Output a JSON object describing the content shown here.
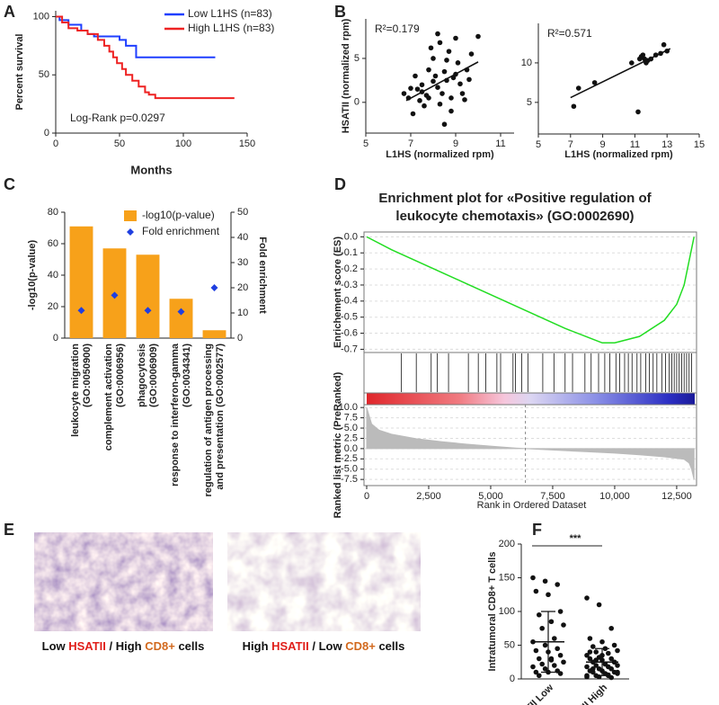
{
  "chart_data": [
    {
      "type": "step",
      "panel": "A",
      "xlabel": "Months",
      "ylabel": "Percent survival",
      "xlim": [
        0,
        150
      ],
      "xticks": [
        0,
        50,
        100,
        150
      ],
      "ylim": [
        0,
        105
      ],
      "yticks": [
        0,
        50,
        100
      ],
      "annotation": "Log-Rank p=0.0297",
      "legend": "upper right",
      "series": [
        {
          "name": "Low L1HS (n=83)",
          "color": "#1f3fff",
          "x": [
            0,
            3,
            10,
            20,
            25,
            30,
            50,
            55,
            63,
            125
          ],
          "values": [
            100,
            97,
            93,
            88,
            85,
            83,
            80,
            75,
            65,
            65
          ]
        },
        {
          "name": "High L1HS (n=83)",
          "color": "#ee2222",
          "x": [
            0,
            5,
            10,
            17,
            25,
            33,
            38,
            42,
            45,
            48,
            52,
            55,
            60,
            65,
            70,
            73,
            78,
            140
          ],
          "values": [
            100,
            95,
            90,
            88,
            85,
            80,
            75,
            70,
            65,
            60,
            55,
            50,
            45,
            40,
            35,
            33,
            30,
            30
          ]
        }
      ]
    },
    {
      "type": "scatter",
      "panel": "B",
      "annotation": "R²=0.179",
      "ylabel": "HSATII (normalized rpm)",
      "xlabel": "L1HS (normalized rpm)",
      "xlim": [
        5,
        11.6
      ],
      "xticks": [
        5,
        7,
        9,
        11
      ],
      "ylim": [
        -3.5,
        9.5
      ],
      "yticks": [
        0,
        5
      ],
      "color": "#111111",
      "x": [
        6.7,
        6.9,
        7.1,
        7.2,
        7.3,
        7.4,
        7.5,
        7.6,
        7.7,
        7.8,
        7.9,
        8.0,
        8.0,
        8.1,
        8.2,
        8.2,
        8.3,
        8.4,
        8.5,
        8.5,
        8.6,
        8.7,
        8.8,
        8.9,
        9.0,
        9.0,
        9.1,
        9.2,
        9.3,
        9.4,
        9.5,
        9.7,
        10.0,
        7.5,
        8.3,
        8.8,
        7.8,
        9.6,
        8.6,
        7.0
      ],
      "values": [
        1.0,
        0.5,
        -1.3,
        3.0,
        1.5,
        0.2,
        2.0,
        -0.4,
        0.8,
        3.7,
        6.2,
        2.4,
        5.0,
        3.0,
        1.7,
        7.8,
        -0.2,
        1.0,
        3.5,
        -2.5,
        2.5,
        5.8,
        0.5,
        2.8,
        3.2,
        7.3,
        4.5,
        2.1,
        1.0,
        0.3,
        3.7,
        5.5,
        7.5,
        1.2,
        6.8,
        -1.0,
        0.5,
        2.6,
        4.8,
        1.6
      ],
      "fit": {
        "x": [
          6.8,
          10.0
        ],
        "values": [
          0.2,
          4.6
        ]
      }
    },
    {
      "type": "scatter",
      "annotation": "R²=0.571",
      "xlabel": "L1HS (normalized rpm)",
      "xlim": [
        5,
        15
      ],
      "xticks": [
        5,
        7,
        9,
        11,
        13,
        15
      ],
      "ylim": [
        1,
        15
      ],
      "yticks": [
        5,
        10
      ],
      "color": "#111111",
      "x": [
        7.2,
        7.5,
        8.5,
        10.8,
        11.2,
        11.3,
        11.5,
        11.6,
        11.7,
        11.8,
        12.0,
        12.3,
        12.6,
        12.8,
        13.0,
        11.4
      ],
      "values": [
        4.5,
        6.8,
        7.5,
        10.0,
        3.8,
        10.5,
        11.0,
        10.5,
        10.0,
        10.3,
        10.5,
        11.0,
        11.2,
        12.3,
        11.5,
        10.8
      ],
      "fit": {
        "x": [
          7.0,
          13.2
        ],
        "values": [
          5.6,
          11.8
        ]
      }
    },
    {
      "type": "bar",
      "panel": "C",
      "ylabel": "-log10(p-value)",
      "y2label": "Fold enrichment",
      "categories": [
        "leukocyte migration\n(GO:0050900)",
        "complement activation\n(GO:0006956)",
        "phagocytosis\n(GO:0006909)",
        "response to interferon-gamma\n(GO:0034341)",
        "regulation of antigen processing\nand presentation (GO:0002577)"
      ],
      "ylim": [
        0,
        80
      ],
      "yticks": [
        0,
        20,
        40,
        60,
        80
      ],
      "y2lim": [
        0,
        50
      ],
      "y2ticks": [
        0,
        10,
        20,
        30,
        40,
        50
      ],
      "series": [
        {
          "name": "-log10(p-value)",
          "color": "#f7a11a",
          "values": [
            71,
            57,
            53,
            25,
            5
          ]
        },
        {
          "name": "Fold enrichment",
          "color": "#1f3fe0",
          "axis": "y2",
          "values": [
            11,
            17,
            11,
            10.5,
            20
          ]
        }
      ]
    },
    {
      "type": "gsea",
      "panel": "D",
      "title": "Enrichment plot for «Positive regulation of leukocyte chemotaxis» (GO:0002690)",
      "xlabel": "Rank in Ordered Dataset",
      "xlim": [
        0,
        13300
      ],
      "xticks": [
        0,
        {
          "value": 2500,
          "label": "2,500"
        },
        {
          "value": 5000,
          "label": "5,000"
        },
        {
          "value": 7500,
          "label": "7,500"
        },
        {
          "value": 10000,
          "label": "10,000"
        },
        {
          "value": 12500,
          "label": "12,500"
        }
      ],
      "es": {
        "ylabel": "Enrichement score (ES)",
        "ylim": [
          -0.72,
          0.03
        ],
        "color": "#22dd22",
        "yticks": [
          {
            "value": 0,
            "label": "0.0"
          },
          -0.1,
          -0.2,
          -0.3,
          -0.4,
          -0.5,
          -0.6,
          -0.7
        ],
        "x": [
          0,
          1000,
          2000,
          3000,
          4000,
          5000,
          6000,
          7000,
          8000,
          9000,
          9500,
          10000,
          11000,
          12000,
          12500,
          12800,
          13000,
          13200
        ],
        "values": [
          0,
          -0.08,
          -0.15,
          -0.22,
          -0.29,
          -0.36,
          -0.43,
          -0.5,
          -0.57,
          -0.63,
          -0.66,
          -0.66,
          -0.62,
          -0.52,
          -0.42,
          -0.3,
          -0.15,
          0
        ]
      },
      "hits": [
        1400,
        2000,
        2600,
        2850,
        3300,
        4100,
        4500,
        4800,
        5250,
        5400,
        5900,
        6000,
        6250,
        6500,
        7100,
        7550,
        8000,
        8300,
        8800,
        9050,
        9350,
        9600,
        9800,
        10050,
        10200,
        10400,
        10550,
        10700,
        10900,
        11050,
        11250,
        11400,
        11550,
        11700,
        11900,
        12050,
        12200,
        12300,
        12400,
        12500,
        12600,
        12700,
        12800,
        12900,
        13000,
        13100
      ],
      "metric": {
        "ylabel": "Ranked list metric (PreRanked)",
        "ylim": [
          -9,
          10.7
        ],
        "color": "#bbbbbb",
        "yticks": [
          {
            "value": 10,
            "label": "10.0"
          },
          7.5,
          {
            "value": 5,
            "label": "5.0"
          },
          2.5,
          {
            "value": 0,
            "label": "0.0"
          },
          -2.5,
          {
            "value": -5,
            "label": "-5.0"
          },
          -7.5
        ],
        "x": [
          0,
          200,
          500,
          1000,
          2000,
          3000,
          4000,
          5000,
          6000,
          6400,
          7000,
          8000,
          9000,
          10000,
          11000,
          12000,
          12800,
          13000,
          13100,
          13200
        ],
        "values": [
          10,
          6,
          4.5,
          3.5,
          2.4,
          1.7,
          1.1,
          0.6,
          0.15,
          0,
          -0.2,
          -0.5,
          -0.8,
          -1.1,
          -1.5,
          -2,
          -2.6,
          -3.5,
          -5,
          -7.5
        ],
        "zero_cross": 6400
      }
    },
    {
      "type": "dotplot",
      "panel": "F",
      "ylabel": "Intratumoral CD8+ T cells",
      "categories": [
        "HSATII Low",
        "HSATII High"
      ],
      "ylim": [
        0,
        200
      ],
      "yticks": [
        0,
        50,
        100,
        150,
        200
      ],
      "significance": "***",
      "color": "#111111",
      "groups": [
        {
          "values": [
            150,
            145,
            140,
            130,
            125,
            100,
            95,
            85,
            80,
            75,
            60,
            55,
            50,
            45,
            42,
            40,
            35,
            30,
            28,
            25,
            22,
            20,
            18,
            15,
            12,
            10,
            10,
            8,
            5,
            30
          ],
          "mean": 55,
          "sd": 45
        },
        {
          "values": [
            120,
            110,
            75,
            60,
            55,
            50,
            48,
            45,
            42,
            40,
            38,
            35,
            32,
            30,
            30,
            28,
            25,
            25,
            22,
            20,
            20,
            18,
            18,
            15,
            15,
            12,
            12,
            10,
            10,
            8,
            8,
            5,
            5,
            5,
            3,
            2,
            40,
            35,
            25,
            15,
            22,
            10,
            28,
            6,
            3
          ],
          "mean": 25,
          "sd": 20
        }
      ]
    }
  ],
  "images": {
    "panel": "E",
    "captions": [
      [
        {
          "text": "Low ",
          "color": "#111111"
        },
        {
          "text": "HSATII",
          "color": "#e0201b"
        },
        {
          "text": " / High ",
          "color": "#111111"
        },
        {
          "text": "CD8+",
          "color": "#d2691e"
        },
        {
          "text": " cells",
          "color": "#111111"
        }
      ],
      [
        {
          "text": "High ",
          "color": "#111111"
        },
        {
          "text": "HSATII",
          "color": "#e0201b"
        },
        {
          "text": " / Low ",
          "color": "#111111"
        },
        {
          "text": "CD8+",
          "color": "#d2691e"
        },
        {
          "text": " cells",
          "color": "#111111"
        }
      ]
    ]
  }
}
